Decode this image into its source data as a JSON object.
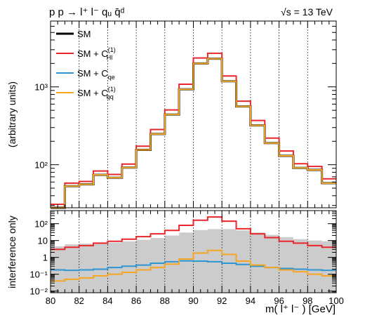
{
  "header": {
    "process": "p p → l⁺ l⁻ qᵤ q̄ᵈ",
    "energy": "√s = 13 TeV"
  },
  "legend": [
    {
      "label": "SM",
      "color": "#000000"
    },
    {
      "label": "SM + C(1)Hl",
      "color": "#e8262b"
    },
    {
      "label": "SM + Cqe",
      "color": "#2e95d3"
    },
    {
      "label": "SM + C(1)qq",
      "color": "#f5a623"
    }
  ],
  "colors": {
    "sm": "#000000",
    "c1hl": "#e8262b",
    "cqe": "#2e95d3",
    "c1qq": "#f5a623",
    "band": "#cccccc"
  },
  "chart_data": [
    {
      "type": "line",
      "step": true,
      "x_edges": [
        80,
        81,
        82,
        83,
        84,
        85,
        86,
        87,
        88,
        89,
        90,
        91,
        92,
        93,
        94,
        95,
        96,
        97,
        98,
        99,
        100
      ],
      "xlim": [
        80,
        100
      ],
      "ylim": [
        28,
        7000
      ],
      "yscale": "log",
      "ylabel": "(arbitrary units)",
      "xticks": [
        80,
        82,
        84,
        86,
        88,
        90,
        92,
        94,
        96,
        98,
        100
      ],
      "yticks": [
        {
          "value": 100,
          "label": "10²"
        },
        {
          "value": 1000,
          "label": "10³"
        }
      ],
      "vlines": [
        82,
        84,
        86,
        88,
        90,
        92,
        94,
        96,
        98
      ],
      "series": [
        {
          "name": "SM",
          "color": "#000000",
          "values": [
            28,
            53,
            56,
            74,
            68,
            92,
            155,
            248,
            440,
            930,
            2000,
            2300,
            1180,
            560,
            320,
            190,
            130,
            91,
            86,
            58
          ]
        },
        {
          "name": "SM + C(1)Hl",
          "color": "#e8262b",
          "values": [
            31,
            58,
            61,
            83,
            75,
            102,
            173,
            283,
            505,
            1080,
            2350,
            2700,
            1380,
            655,
            370,
            220,
            150,
            103,
            95,
            66
          ]
        },
        {
          "name": "SM + Cqe",
          "color": "#2e95d3",
          "values": [
            28,
            53,
            56,
            74,
            68,
            92,
            155,
            248,
            440,
            930,
            2000,
            2300,
            1180,
            560,
            320,
            190,
            130,
            91,
            86,
            58
          ]
        },
        {
          "name": "SM + C(1)qq",
          "color": "#f5a623",
          "values": [
            28,
            53,
            56,
            74,
            68,
            92,
            155,
            248,
            440,
            930,
            2000,
            2300,
            1180,
            560,
            320,
            190,
            130,
            91,
            86,
            58
          ]
        }
      ]
    },
    {
      "type": "line",
      "step": true,
      "x_edges": [
        80,
        81,
        82,
        83,
        84,
        85,
        86,
        87,
        88,
        89,
        90,
        91,
        92,
        93,
        94,
        95,
        96,
        97,
        98,
        99,
        100
      ],
      "xlim": [
        80,
        100
      ],
      "ylim": [
        0.008,
        600
      ],
      "yscale": "log",
      "ylabel": "interference only",
      "xlabel": "m( l⁺ l⁻ ) [GeV]",
      "xticks": [
        80,
        82,
        84,
        86,
        88,
        90,
        92,
        94,
        96,
        98,
        100
      ],
      "yticks": [
        {
          "value": 0.01,
          "label": "10⁻²"
        },
        {
          "value": 0.1,
          "label": "10⁻¹"
        },
        {
          "value": 1,
          "label": "1"
        },
        {
          "value": 10,
          "label": "10"
        },
        {
          "value": 100,
          "label": "10²"
        }
      ],
      "vlines": [
        82,
        84,
        86,
        88,
        90,
        92,
        94,
        96,
        98
      ],
      "band": {
        "low": 0.008,
        "high": [
          4.5,
          6,
          6.5,
          7,
          7.5,
          9,
          11,
          14,
          20,
          30,
          42,
          48,
          48,
          40,
          30,
          22,
          16,
          12,
          10,
          9
        ]
      },
      "series": [
        {
          "name": "SM + C(1)Hl",
          "color": "#e8262b",
          "values": [
            3,
            4,
            5,
            7,
            9,
            12,
            17,
            25,
            40,
            80,
            160,
            250,
            140,
            50,
            25,
            15,
            9,
            7,
            5,
            4
          ]
        },
        {
          "name": "SM + Cqe",
          "color": "#2e95d3",
          "values": [
            0.18,
            0.17,
            0.18,
            0.2,
            0.25,
            0.3,
            0.35,
            0.45,
            0.55,
            0.62,
            0.6,
            0.55,
            0.45,
            0.38,
            0.3,
            0.25,
            0.22,
            0.2,
            0.18,
            0.17
          ]
        },
        {
          "name": "SM + C(1)qq",
          "color": "#f5a623",
          "values": [
            0.04,
            0.05,
            0.06,
            0.08,
            0.1,
            0.13,
            0.18,
            0.25,
            0.4,
            0.8,
            1.8,
            2.6,
            1.5,
            0.6,
            0.35,
            0.25,
            0.18,
            0.14,
            0.1,
            0.08
          ]
        }
      ]
    }
  ]
}
